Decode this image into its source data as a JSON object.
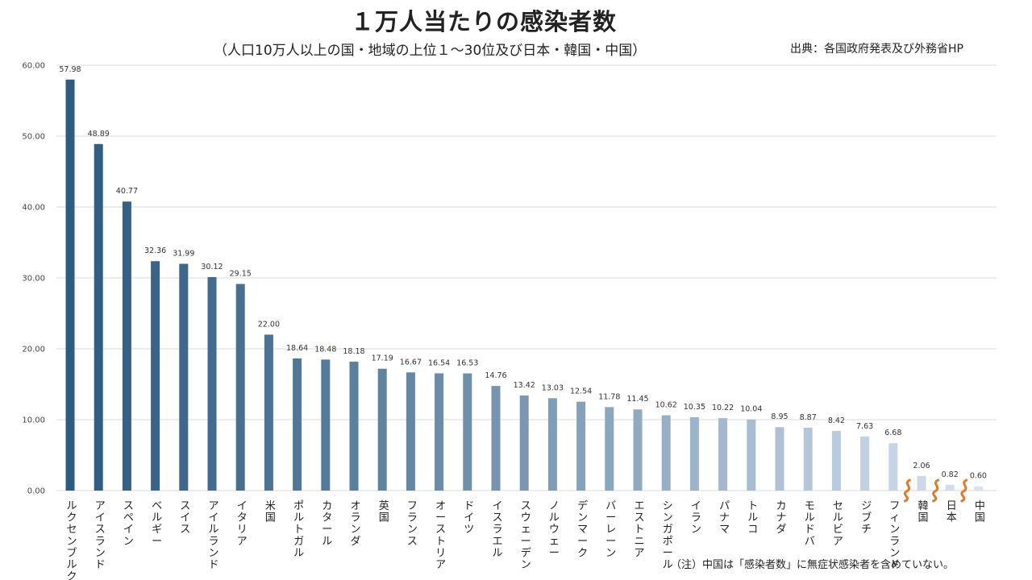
{
  "header": {
    "title": "１万人当たりの感染者数",
    "subtitle": "（人口10万人以上の国・地域の上位１～30位及び日本・韓国・中国）",
    "source": "出典：各国政府発表及び外務省HP",
    "note": "（注）中国は「感染者数」に無症状感染者を含めていない。"
  },
  "chart_data": {
    "type": "bar",
    "title": "１万人当たりの感染者数",
    "subtitle": "（人口10万人以上の国・地域の上位１～30位及び日本・韓国・中国）",
    "xlabel": "",
    "ylabel": "",
    "ylim": [
      0,
      60
    ],
    "yticks": [
      "0.00",
      "10.00",
      "20.00",
      "30.00",
      "40.00",
      "50.00",
      "60.00"
    ],
    "grid": true,
    "legend": "none",
    "categories": [
      "ルクセンブルク",
      "アイスランド",
      "スペイン",
      "ベルギー",
      "スイス",
      "アイルランド",
      "イタリア",
      "米国",
      "ポルトガル",
      "カタール",
      "オランダ",
      "英国",
      "フランス",
      "オーストリア",
      "ドイツ",
      "イスラエル",
      "スウェーデン",
      "ノルウェー",
      "デンマーク",
      "バーレーン",
      "エストニア",
      "シンガポール",
      "イラン",
      "パナマ",
      "トルコ",
      "カナダ",
      "モルドバ",
      "セルビア",
      "ジブチ",
      "フィンランド",
      "韓国",
      "日本",
      "中国"
    ],
    "values": [
      57.98,
      48.89,
      40.77,
      32.36,
      31.99,
      30.12,
      29.15,
      22.0,
      18.64,
      18.48,
      18.18,
      17.19,
      16.67,
      16.54,
      16.53,
      14.76,
      13.42,
      13.03,
      12.54,
      11.78,
      11.45,
      10.62,
      10.35,
      10.22,
      10.04,
      8.95,
      8.87,
      8.42,
      7.63,
      6.68,
      2.06,
      0.82,
      0.6
    ],
    "labels": [
      "57.98",
      "48.89",
      "40.77",
      "32.36",
      "31.99",
      "30.12",
      "29.15",
      "22.00",
      "18.64",
      "18.48",
      "18.18",
      "17.19",
      "16.67",
      "16.54",
      "16.53",
      "14.76",
      "13.42",
      "13.03",
      "12.54",
      "11.78",
      "11.45",
      "10.62",
      "10.35",
      "10.22",
      "10.04",
      "8.95",
      "8.87",
      "8.42",
      "7.63",
      "6.68",
      "2.06",
      "0.82",
      "0.60"
    ],
    "colors": {
      "start": "#2e5b82",
      "end": "#d7e3f2",
      "break_mark": "#e07a2b",
      "grid": "#d9d9d9"
    }
  }
}
